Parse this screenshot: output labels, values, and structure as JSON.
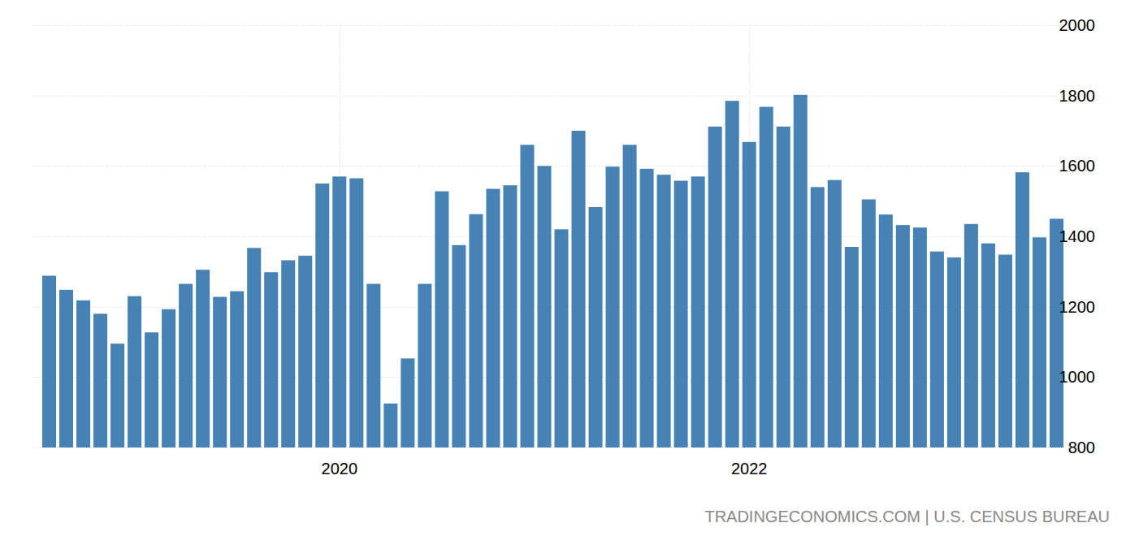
{
  "chart_data": {
    "type": "bar",
    "categories": [
      null,
      null,
      null,
      null,
      null,
      null,
      null,
      null,
      null,
      null,
      null,
      null,
      null,
      null,
      null,
      null,
      null,
      "2020",
      null,
      null,
      null,
      null,
      null,
      null,
      null,
      null,
      null,
      null,
      null,
      null,
      null,
      null,
      null,
      null,
      null,
      null,
      null,
      null,
      null,
      null,
      null,
      "2022",
      null,
      null,
      null,
      null,
      null,
      null,
      null,
      null,
      null,
      null,
      null,
      null,
      null,
      null,
      null,
      null,
      null,
      null
    ],
    "values": [
      1288,
      1248,
      1218,
      1180,
      1095,
      1230,
      1127,
      1193,
      1265,
      1305,
      1228,
      1244,
      1367,
      1298,
      1332,
      1345,
      1550,
      1570,
      1565,
      1265,
      925,
      1053,
      1265,
      1528,
      1375,
      1463,
      1535,
      1545,
      1660,
      1600,
      1420,
      1700,
      1483,
      1598,
      1660,
      1592,
      1575,
      1558,
      1570,
      1712,
      1785,
      1668,
      1768,
      1712,
      1802,
      1540,
      1560,
      1370,
      1505,
      1462,
      1432,
      1425,
      1357,
      1340,
      1435,
      1380,
      1348,
      1582,
      1397,
      1450
    ],
    "color": "#4682b4",
    "ylim": [
      800,
      2000
    ],
    "yticks": [
      800,
      1000,
      1200,
      1400,
      1600,
      1800,
      2000
    ],
    "grid": true,
    "source": "TRADINGECONOMICS.COM | U.S. CENSUS BUREAU"
  }
}
